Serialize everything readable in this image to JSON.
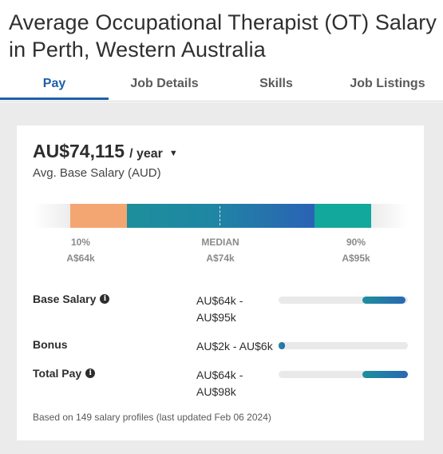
{
  "page_title": "Average Occupational Therapist (OT) Salary in Perth, Western Australia",
  "tabs": [
    {
      "label": "Pay",
      "active": true
    },
    {
      "label": "Job Details",
      "active": false
    },
    {
      "label": "Skills",
      "active": false
    },
    {
      "label": "Job Listings",
      "active": false
    }
  ],
  "summary": {
    "amount": "AU$74,115",
    "period": "/ year",
    "caret": "▼",
    "subtitle": "Avg. Base Salary (AUD)"
  },
  "percentiles": [
    {
      "label": "10%",
      "value": "A$64k"
    },
    {
      "label": "MEDIAN",
      "value": "A$74k"
    },
    {
      "label": "90%",
      "value": "A$95k"
    }
  ],
  "colors": {
    "accent": "#1e5fa8",
    "low_segment": "#f4a672",
    "high_segment": "#12a89b"
  },
  "compensation": [
    {
      "label": "Base Salary",
      "has_info": true,
      "range": "AU$64k - AU$95k",
      "fill_start_pct": 65,
      "fill_end_pct": 98
    },
    {
      "label": "Bonus",
      "has_info": false,
      "range": "AU$2k - AU$6k",
      "fill_start_pct": 0,
      "fill_end_pct": 5
    },
    {
      "label": "Total Pay",
      "has_info": true,
      "range": "AU$64k - AU$98k",
      "fill_start_pct": 65,
      "fill_end_pct": 100
    }
  ],
  "footnote": "Based on 149 salary profiles (last updated Feb 06 2024)"
}
